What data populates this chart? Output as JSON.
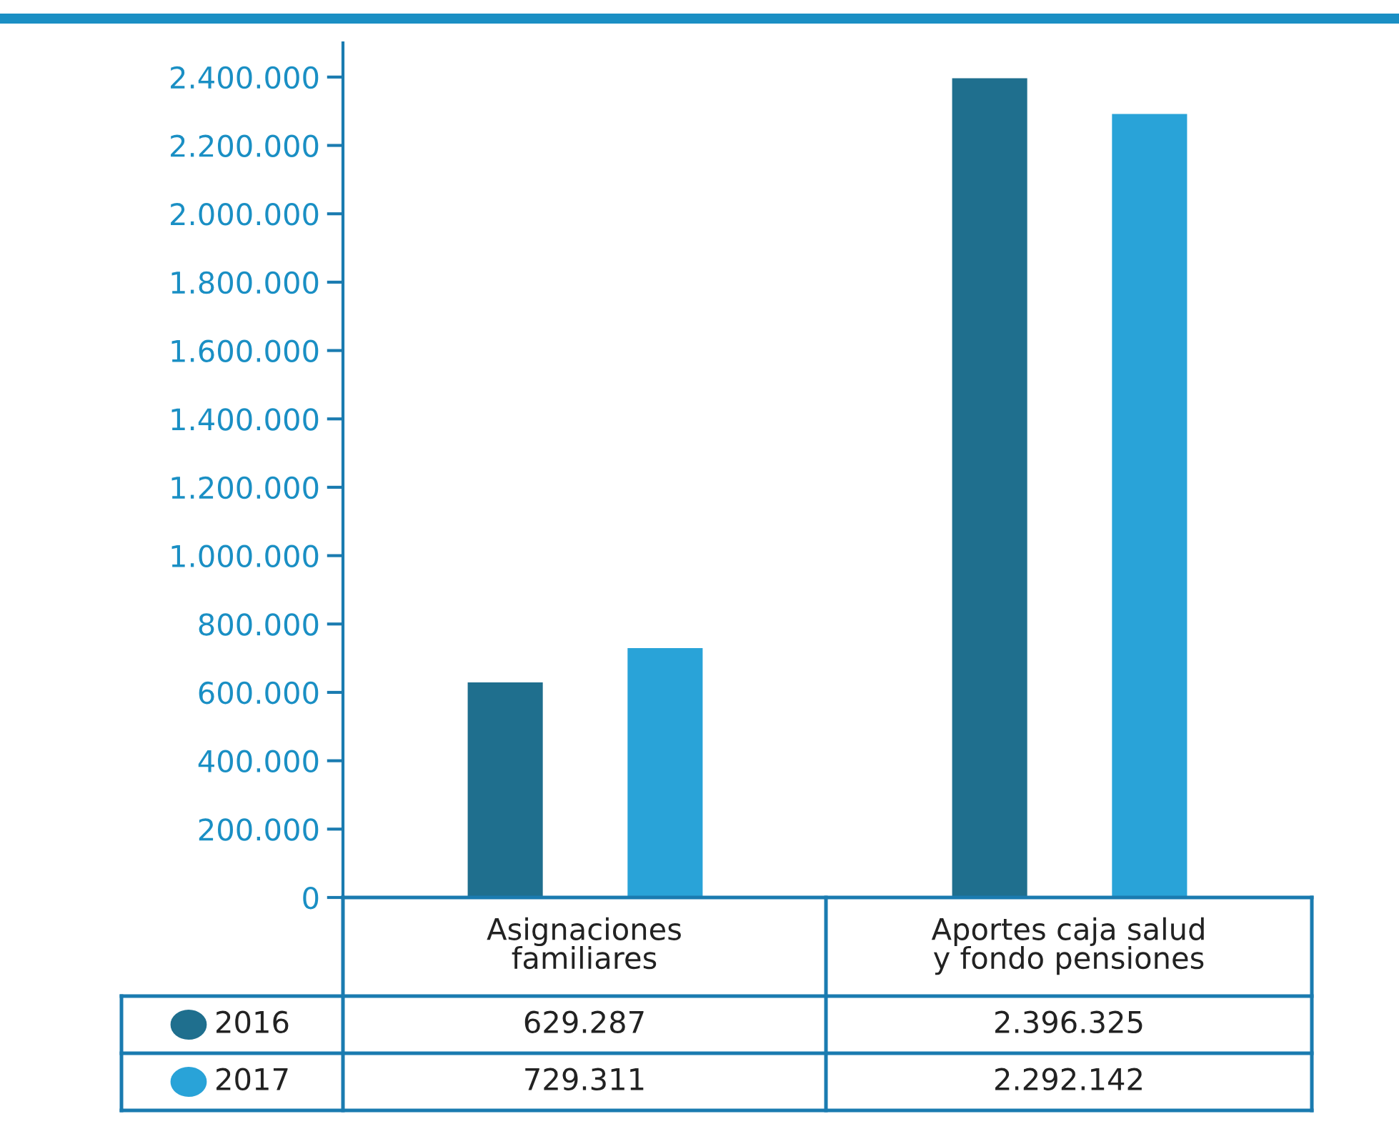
{
  "chart_data": {
    "type": "bar",
    "categories": [
      "Asignaciones\nfamiliares",
      "Aportes caja salud\ny fondo pensiones"
    ],
    "series": [
      {
        "name": "2016",
        "color": "#1f6f8e",
        "values": [
          629287,
          2396325
        ],
        "value_labels": [
          "629.287",
          "2.396.325"
        ]
      },
      {
        "name": "2017",
        "color": "#29a3d8",
        "values": [
          729311,
          2292142
        ],
        "value_labels": [
          "729.311",
          "2.292.142"
        ]
      }
    ],
    "ylim": [
      0,
      2500000
    ],
    "yticks": [
      0,
      {
        "value": 200000,
        "label": "200.000"
      },
      {
        "value": 400000,
        "label": "400.000"
      },
      {
        "value": 600000,
        "label": "600.000"
      },
      {
        "value": 800000,
        "label": "800.000"
      },
      {
        "value": 1000000,
        "label": "1.000.000"
      },
      {
        "value": 1200000,
        "label": "1.200.000"
      },
      {
        "value": 1400000,
        "label": "1.400.000"
      },
      {
        "value": 1600000,
        "label": "1.600.000"
      },
      {
        "value": 1800000,
        "label": "1.800.000"
      },
      {
        "value": 2000000,
        "label": "2.000.000"
      },
      {
        "value": 2200000,
        "label": "2.200.000"
      },
      {
        "value": 2400000,
        "label": "2.400.000"
      }
    ],
    "legend": "bottom left",
    "grid": false
  }
}
